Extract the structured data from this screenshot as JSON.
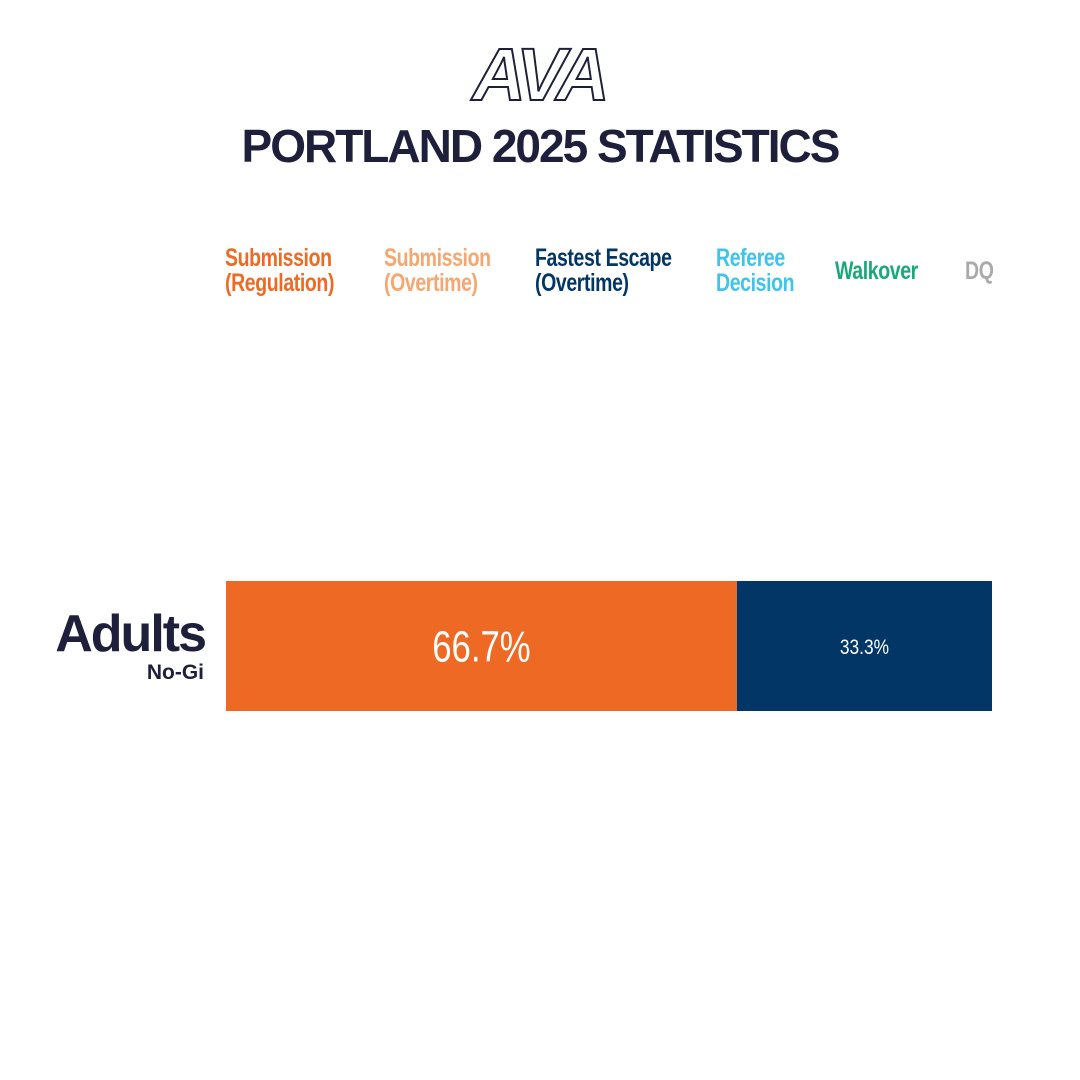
{
  "chart_data": {
    "type": "stacked-bar-horizontal",
    "logo": "AVA",
    "title": "PORTLAND 2025 STATISTICS",
    "categories": [
      "Adults"
    ],
    "category_subtitles": [
      "No-Gi"
    ],
    "xlim": [
      0,
      100
    ],
    "series": [
      {
        "name": "Submission\n(Regulation)",
        "color": "#ee6a24",
        "values": [
          66.7
        ],
        "value_labels": [
          "66.7%"
        ]
      },
      {
        "name": "Submission\n(Overtime)",
        "color": "#f6a66e",
        "values": [
          0
        ]
      },
      {
        "name": "Fastest Escape\n(Overtime)",
        "color": "#023667",
        "values": [
          33.3
        ],
        "value_labels": [
          "33.3%"
        ]
      },
      {
        "name": "Referee\nDecision",
        "color": "#3ec4ec",
        "values": [
          0
        ]
      },
      {
        "name": "Walkover",
        "color": "#17a97a",
        "values": [
          0
        ]
      },
      {
        "name": "DQ",
        "color": "#aaaaaa",
        "values": [
          0
        ]
      }
    ]
  }
}
